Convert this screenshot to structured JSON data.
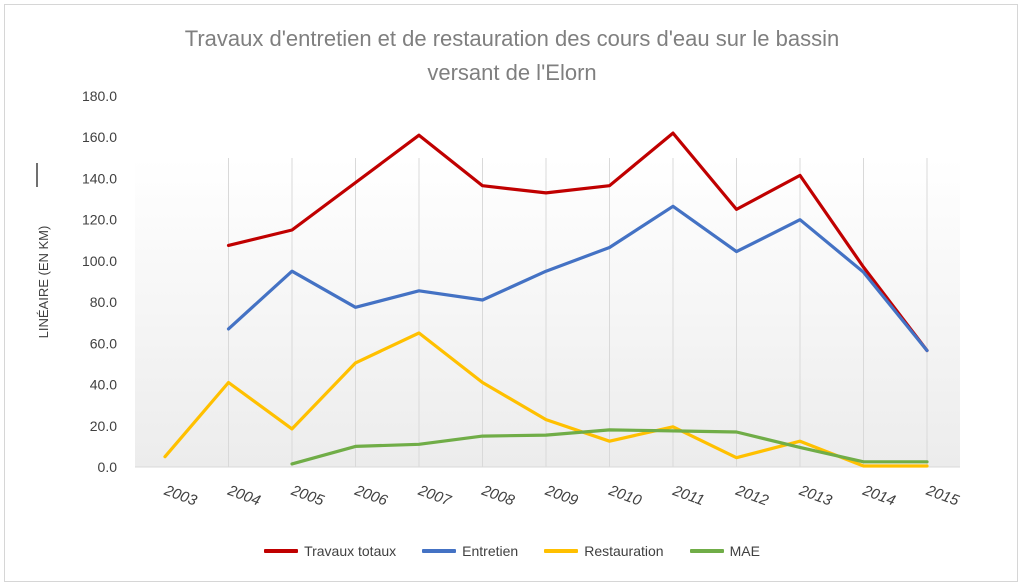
{
  "chart_data": {
    "type": "line",
    "title_line1": "Travaux d'entretien et de restauration des cours d'eau sur le bassin",
    "title_line2": "versant de l'Elorn",
    "ylabel": "LINÉAIRE (EN KM)",
    "xlabel": "",
    "ylim": [
      0,
      180
    ],
    "ytick_step": 20,
    "yticks": [
      "0.0",
      "20.0",
      "40.0",
      "60.0",
      "80.0",
      "100.0",
      "120.0",
      "140.0",
      "160.0",
      "180.0"
    ],
    "categories": [
      "2003",
      "2004",
      "2005",
      "2006",
      "2007",
      "2008",
      "2009",
      "2010",
      "2011",
      "2012",
      "2013",
      "2014",
      "2015"
    ],
    "grid": "vertical",
    "legend_position": "bottom",
    "series": [
      {
        "name": "Travaux totaux",
        "color": "#c00000",
        "values": [
          null,
          107.5,
          115,
          138,
          161,
          136.5,
          133,
          136.5,
          162,
          125,
          141.5,
          97,
          56.5
        ]
      },
      {
        "name": "Entretien",
        "color": "#4472c4",
        "values": [
          null,
          67,
          95,
          77.5,
          85.5,
          81,
          95,
          106.5,
          126.5,
          104.5,
          120,
          94.5,
          56.5
        ]
      },
      {
        "name": "Restauration",
        "color": "#ffc000",
        "values": [
          5,
          41,
          18.5,
          50.5,
          65,
          41,
          23,
          12.5,
          19.5,
          4.5,
          12.5,
          0.5,
          0.5
        ]
      },
      {
        "name": "MAE",
        "color": "#70ad47",
        "values": [
          null,
          null,
          1.5,
          10,
          11,
          15,
          15.5,
          18,
          17.5,
          17,
          9.5,
          2.5,
          2.5
        ]
      }
    ]
  }
}
